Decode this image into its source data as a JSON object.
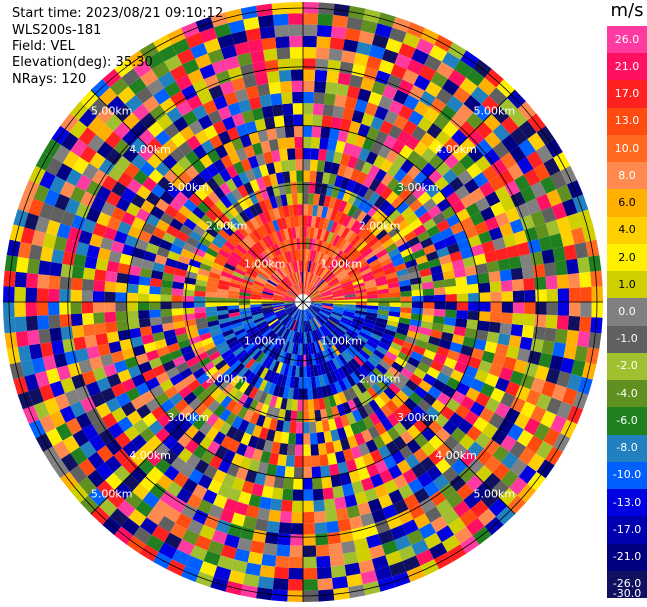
{
  "info": {
    "start_time": "Start time: 2023/08/21 09:10:12",
    "instrument": "WLS200s-181",
    "field": "Field: VEL",
    "elevation": "Elevation(deg): 35.30",
    "nrays": "NRays: 120"
  },
  "colorbar": {
    "unit": "m/s",
    "ticks": [
      "26.0",
      "21.0",
      "17.0",
      "13.0",
      "10.0",
      "8.0",
      "6.0",
      "4.0",
      "2.0",
      "1.0",
      "0.0",
      "-1.0",
      "-2.0",
      "-4.0",
      "-6.0",
      "-8.0",
      "-10.0",
      "-13.0",
      "-17.0",
      "-21.0",
      "-26.0",
      "-30.0"
    ],
    "colors": [
      "#ff3aa0",
      "#ff1060",
      "#ff2020",
      "#ff4a10",
      "#ff6a20",
      "#ff8a50",
      "#ffb000",
      "#ffd000",
      "#fff000",
      "#d0d000",
      "#808080",
      "#606060",
      "#a0c030",
      "#609020",
      "#208020",
      "#2080c0",
      "#0060ff",
      "#0000e0",
      "#0000b0",
      "#000080",
      "#101060"
    ]
  },
  "chart_data": {
    "type": "heatmap",
    "projection": "polar-ppi",
    "field": "VEL",
    "units": "m/s",
    "nrays": 120,
    "range_rings_km": [
      "1.00km",
      "2.00km",
      "3.00km",
      "4.00km",
      "5.00km"
    ],
    "near_field": {
      "north_half": "positive velocity (red/orange, ~10 to 17 m/s)",
      "south_half": "negative velocity (blue, ~-13 to -21 m/s)"
    },
    "far_field": "noise (mixed colors across full scale)"
  }
}
